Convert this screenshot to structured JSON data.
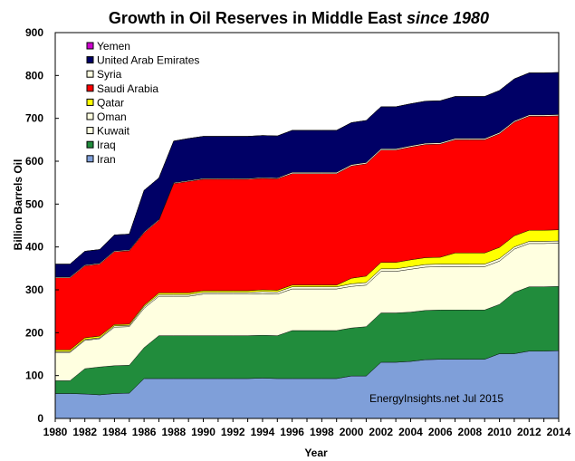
{
  "chart_data": {
    "type": "area",
    "stacked": true,
    "title": "Growth in Oil Reserves in Middle East",
    "title_suffix": "since 1980",
    "xlabel": "Year",
    "ylabel": "Billion Barrels Oil",
    "ylim": [
      0,
      900
    ],
    "yticks": [
      0,
      100,
      200,
      300,
      400,
      500,
      600,
      700,
      800,
      900
    ],
    "xlim": [
      1980,
      2014
    ],
    "xticks": [
      1980,
      1982,
      1984,
      1986,
      1988,
      1990,
      1992,
      1994,
      1996,
      1998,
      2000,
      2002,
      2004,
      2006,
      2008,
      2010,
      2012,
      2014
    ],
    "annotation": "EnergyInsights.net  Jul 2015",
    "x": [
      1980,
      1981,
      1982,
      1983,
      1984,
      1985,
      1986,
      1987,
      1988,
      1989,
      1990,
      1991,
      1992,
      1993,
      1994,
      1995,
      1996,
      1997,
      1998,
      1999,
      2000,
      2001,
      2002,
      2003,
      2004,
      2005,
      2006,
      2007,
      2008,
      2009,
      2010,
      2011,
      2012,
      2013,
      2014
    ],
    "series": [
      {
        "name": "Iran",
        "color": "#7f9fd9",
        "values": [
          58,
          58,
          57,
          55,
          58,
          59,
          93,
          93,
          93,
          93,
          93,
          93,
          93,
          93,
          94,
          93,
          93,
          93,
          93,
          93,
          99,
          99,
          131,
          131,
          133,
          137,
          138,
          138,
          138,
          138,
          151,
          151,
          157,
          157,
          158
        ]
      },
      {
        "name": "Iraq",
        "color": "#218c3c",
        "values": [
          30,
          30,
          59,
          65,
          65,
          65,
          72,
          100,
          100,
          100,
          100,
          100,
          100,
          100,
          100,
          100,
          112,
          112,
          112,
          112,
          112,
          115,
          115,
          115,
          115,
          115,
          115,
          115,
          115,
          115,
          115,
          143,
          150,
          150,
          150
        ]
      },
      {
        "name": "Kuwait",
        "color": "#ffffe0",
        "values": [
          66,
          66,
          66,
          66,
          90,
          90,
          92,
          92,
          92,
          92,
          97,
          97,
          97,
          97,
          97,
          97,
          97,
          97,
          97,
          97,
          97,
          97,
          97,
          97,
          100,
          101,
          101,
          101,
          101,
          101,
          101,
          101,
          101,
          101,
          101
        ]
      },
      {
        "name": "Oman",
        "color": "#ffffe0",
        "values": [
          2,
          2,
          2,
          2,
          3,
          3,
          4,
          4,
          4,
          4,
          4,
          4,
          4,
          4,
          5,
          5,
          5,
          5,
          5,
          5,
          6,
          6,
          6,
          6,
          6,
          6,
          6,
          6,
          6,
          6,
          6,
          5,
          5,
          5,
          5
        ]
      },
      {
        "name": "Qatar",
        "color": "#ffff00",
        "values": [
          4,
          4,
          4,
          4,
          3,
          3,
          3,
          4,
          4,
          4,
          4,
          4,
          4,
          4,
          4,
          4,
          4,
          4,
          4,
          4,
          13,
          15,
          15,
          15,
          16,
          16,
          16,
          26,
          26,
          26,
          26,
          26,
          26,
          26,
          26
        ]
      },
      {
        "name": "Saudi Arabia",
        "color": "#ff0000",
        "values": [
          168,
          168,
          168,
          168,
          170,
          171,
          169,
          169,
          255,
          260,
          260,
          260,
          260,
          260,
          260,
          260,
          260,
          260,
          260,
          260,
          262,
          262,
          262,
          262,
          263,
          264,
          264,
          264,
          264,
          264,
          265,
          265,
          266,
          266,
          266
        ]
      },
      {
        "name": "Syria",
        "color": "#ffffe0",
        "values": [
          2,
          2,
          2,
          2,
          2,
          2,
          2,
          2,
          2,
          2,
          2,
          2,
          2,
          2,
          2,
          2,
          3,
          3,
          3,
          3,
          3,
          3,
          3,
          3,
          3,
          3,
          3,
          3,
          3,
          3,
          3,
          3,
          3,
          3,
          3
        ]
      },
      {
        "name": "United Arab Emirates",
        "color": "#000066",
        "values": [
          30,
          30,
          32,
          32,
          37,
          37,
          97,
          97,
          97,
          98,
          98,
          98,
          98,
          98,
          98,
          98,
          98,
          98,
          98,
          98,
          98,
          98,
          98,
          98,
          98,
          98,
          98,
          98,
          98,
          98,
          98,
          98,
          98,
          98,
          98
        ]
      },
      {
        "name": "Yemen",
        "color": "#cc00cc",
        "values": [
          0,
          0,
          0,
          0,
          0,
          0,
          0,
          0,
          0,
          0,
          0,
          0,
          0,
          0,
          0,
          0,
          0,
          0,
          0,
          0,
          0,
          0,
          0,
          0,
          0,
          0,
          0,
          0,
          0,
          0,
          0,
          0,
          0,
          0,
          0
        ]
      }
    ],
    "legend_order": [
      "Yemen",
      "United Arab Emirates",
      "Syria",
      "Saudi Arabia",
      "Qatar",
      "Oman",
      "Kuwait",
      "Iraq",
      "Iran"
    ],
    "legend_position": "top-left",
    "grid": false
  }
}
